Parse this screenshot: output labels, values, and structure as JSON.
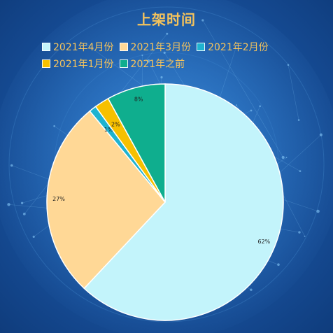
{
  "chart_data": {
    "type": "pie",
    "title": "上架时间",
    "categories": [
      "2021年4月份",
      "2021年3月份",
      "2021年2月份",
      "2021年1月份",
      "2021年之前"
    ],
    "values": [
      62,
      27,
      1,
      2,
      8
    ],
    "labels": [
      "62%",
      "27%",
      "1%",
      "2%",
      "8%"
    ],
    "colors": [
      "#c3f4fb",
      "#ffd896",
      "#1fb3d0",
      "#f6c000",
      "#0fae8e"
    ],
    "legend_position": "top"
  }
}
